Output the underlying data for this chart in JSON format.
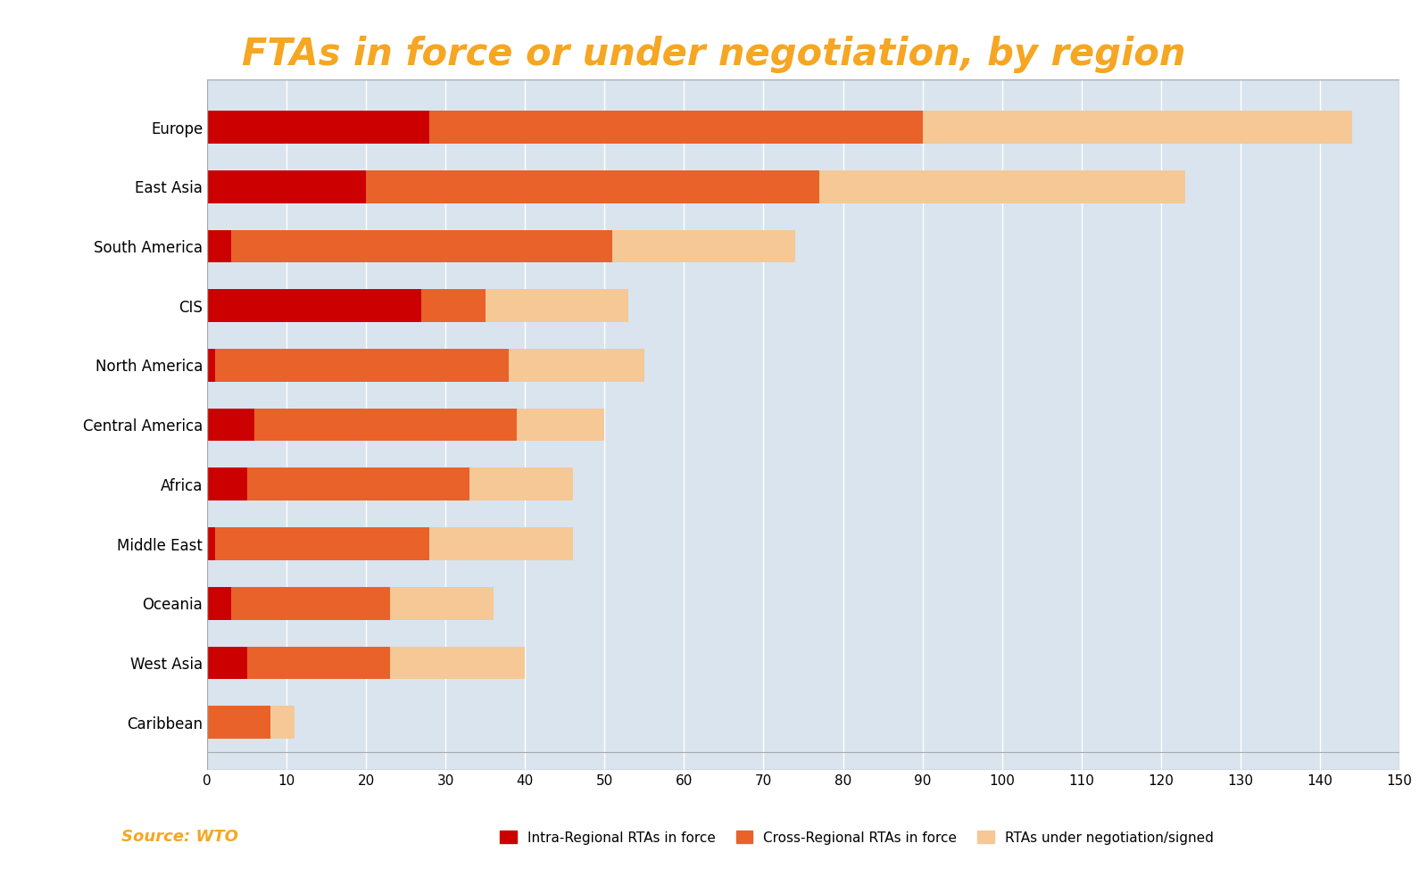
{
  "title": "FTAs in force or under negotiation, by region",
  "title_color": "#F5A623",
  "source_text": "Source: WTO",
  "categories": [
    "Europe",
    "East Asia",
    "South America",
    "CIS",
    "North America",
    "Central America",
    "Africa",
    "Middle East",
    "Oceania",
    "West Asia",
    "Caribbean"
  ],
  "intra_regional": [
    28,
    20,
    3,
    27,
    1,
    6,
    5,
    1,
    3,
    5,
    0
  ],
  "cross_regional": [
    62,
    57,
    48,
    8,
    37,
    33,
    28,
    27,
    20,
    18,
    8
  ],
  "under_negotiation": [
    54,
    46,
    23,
    18,
    17,
    11,
    13,
    18,
    13,
    17,
    3
  ],
  "color_intra": "#CC0000",
  "color_cross": "#E8622A",
  "color_negot": "#F5C896",
  "xlim": [
    0,
    150
  ],
  "xticks": [
    0,
    10,
    20,
    30,
    40,
    50,
    60,
    70,
    80,
    90,
    100,
    110,
    120,
    130,
    140,
    150
  ],
  "background_color": "#D9E4EF",
  "figure_background": "#FFFFFF",
  "legend_labels": [
    "Intra-Regional RTAs in force",
    "Cross-Regional RTAs in force",
    "RTAs under negotiation/signed"
  ],
  "bar_height": 0.55
}
